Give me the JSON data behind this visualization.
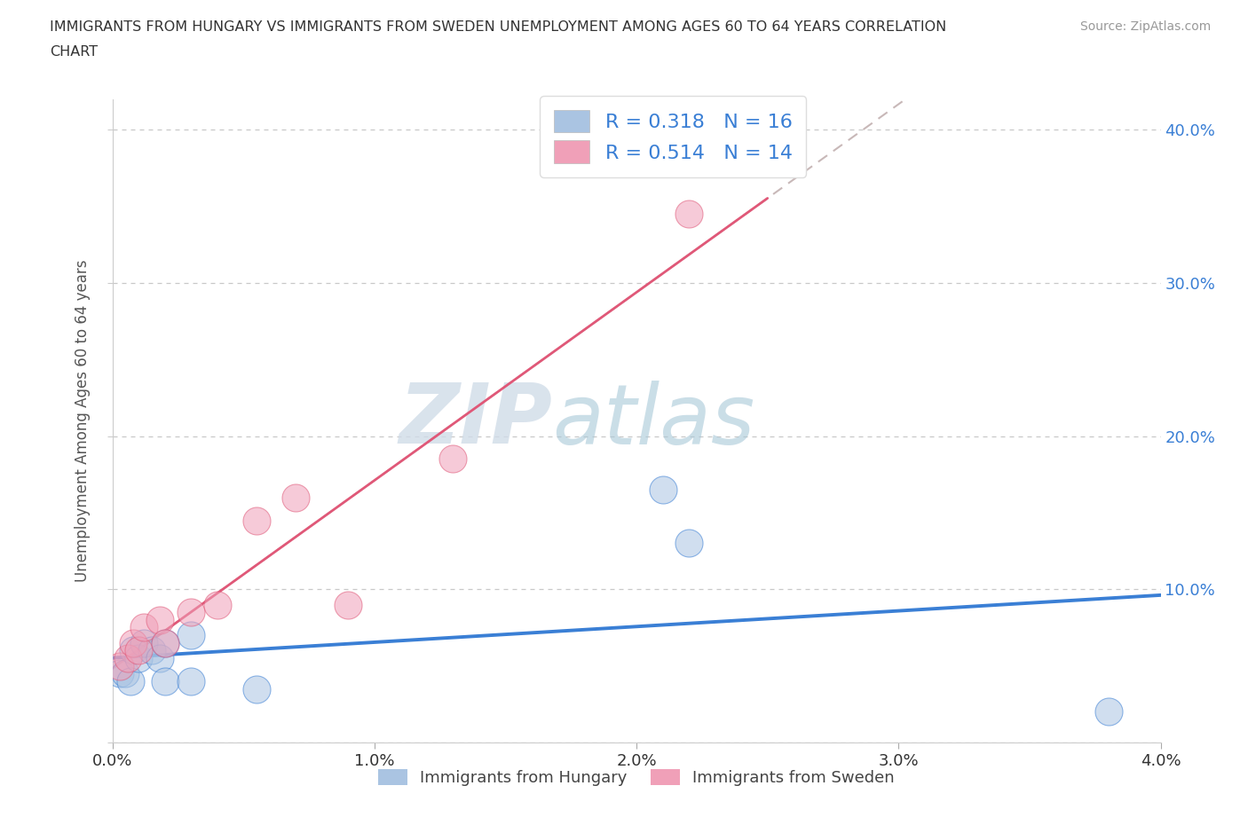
{
  "title_line1": "IMMIGRANTS FROM HUNGARY VS IMMIGRANTS FROM SWEDEN UNEMPLOYMENT AMONG AGES 60 TO 64 YEARS CORRELATION",
  "title_line2": "CHART",
  "source": "Source: ZipAtlas.com",
  "ylabel": "Unemployment Among Ages 60 to 64 years",
  "xlim": [
    0.0,
    0.04
  ],
  "ylim": [
    0.0,
    0.42
  ],
  "xticks": [
    0.0,
    0.01,
    0.02,
    0.03,
    0.04
  ],
  "xtick_labels": [
    "0.0%",
    "1.0%",
    "2.0%",
    "3.0%",
    "4.0%"
  ],
  "yticks": [
    0.0,
    0.1,
    0.2,
    0.3,
    0.4
  ],
  "ytick_labels_left": [
    "",
    "",
    "",
    "",
    ""
  ],
  "ytick_labels_right": [
    "",
    "10.0%",
    "20.0%",
    "30.0%",
    "40.0%"
  ],
  "hungary_R": 0.318,
  "hungary_N": 16,
  "sweden_R": 0.514,
  "sweden_N": 14,
  "hungary_color": "#aac4e2",
  "sweden_color": "#f0a0b8",
  "hungary_line_color": "#3a7fd5",
  "sweden_line_color": "#e05878",
  "gray_dash_color": "#c8b8b8",
  "watermark_zip": "ZIP",
  "watermark_atlas": "atlas",
  "hungary_x": [
    0.0003,
    0.0005,
    0.0007,
    0.0008,
    0.001,
    0.0012,
    0.0015,
    0.0018,
    0.002,
    0.002,
    0.003,
    0.003,
    0.0055,
    0.021,
    0.022,
    0.038
  ],
  "hungary_y": [
    0.045,
    0.045,
    0.04,
    0.06,
    0.055,
    0.065,
    0.06,
    0.055,
    0.065,
    0.04,
    0.07,
    0.04,
    0.035,
    0.165,
    0.13,
    0.02
  ],
  "sweden_x": [
    0.0003,
    0.0006,
    0.0008,
    0.001,
    0.0012,
    0.0018,
    0.002,
    0.003,
    0.004,
    0.0055,
    0.007,
    0.009,
    0.013,
    0.022
  ],
  "sweden_y": [
    0.05,
    0.055,
    0.065,
    0.06,
    0.075,
    0.08,
    0.065,
    0.085,
    0.09,
    0.145,
    0.16,
    0.09,
    0.185,
    0.345
  ],
  "background_color": "#ffffff",
  "grid_color": "#c8c8c8",
  "label_color": "#3a7fd5",
  "text_color": "#333333"
}
